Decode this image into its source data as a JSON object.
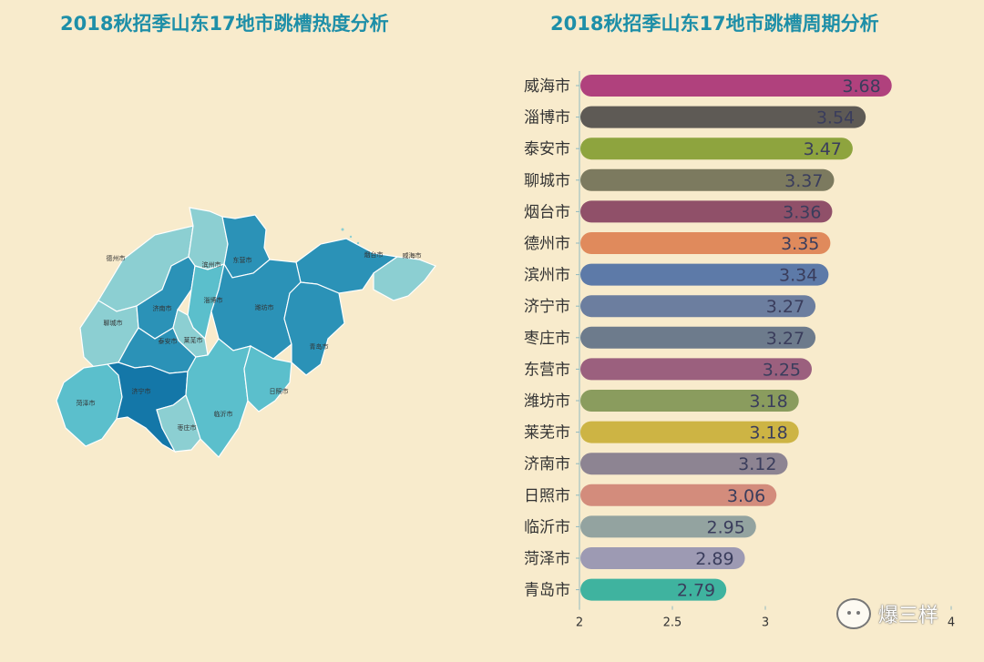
{
  "titles": {
    "left": "2018秋招季山东17地市跳槽热度分析",
    "right": "2018秋招季山东17地市跳槽周期分析"
  },
  "map": {
    "regions": [
      {
        "name": "德州市",
        "color": "#8ccfd2"
      },
      {
        "name": "滨州市",
        "color": "#8ccfd2"
      },
      {
        "name": "东营市",
        "color": "#2b92b7"
      },
      {
        "name": "烟台市",
        "color": "#2b92b7"
      },
      {
        "name": "威海市",
        "color": "#8ccfd2"
      },
      {
        "name": "聊城市",
        "color": "#8ccfd2"
      },
      {
        "name": "济南市",
        "color": "#2b92b7"
      },
      {
        "name": "淄博市",
        "color": "#5bbfcc"
      },
      {
        "name": "潍坊市",
        "color": "#2b92b7"
      },
      {
        "name": "青岛市",
        "color": "#2b92b7"
      },
      {
        "name": "泰安市",
        "color": "#2b92b7"
      },
      {
        "name": "莱芜市",
        "color": "#8ccfd2"
      },
      {
        "name": "菏泽市",
        "color": "#5bbfcc"
      },
      {
        "name": "济宁市",
        "color": "#1477a8"
      },
      {
        "name": "枣庄市",
        "color": "#8ccfd2"
      },
      {
        "name": "临沂市",
        "color": "#5bbfcc"
      },
      {
        "name": "日照市",
        "color": "#5bbfcc"
      }
    ]
  },
  "chart_data": {
    "type": "bar",
    "orientation": "horizontal",
    "categories": [
      "威海市",
      "淄博市",
      "泰安市",
      "聊城市",
      "烟台市",
      "德州市",
      "滨州市",
      "济宁市",
      "枣庄市",
      "东营市",
      "潍坊市",
      "莱芜市",
      "济南市",
      "日照市",
      "临沂市",
      "菏泽市",
      "青岛市"
    ],
    "values": [
      3.68,
      3.54,
      3.47,
      3.37,
      3.36,
      3.35,
      3.34,
      3.27,
      3.27,
      3.25,
      3.18,
      3.18,
      3.12,
      3.06,
      2.95,
      2.89,
      2.79
    ],
    "colors": [
      "#b0417d",
      "#5e5a55",
      "#8ea43e",
      "#7c7a5f",
      "#905069",
      "#e08a5c",
      "#5d7aa8",
      "#6c7e9f",
      "#6d7b8c",
      "#9b607e",
      "#8a9c5e",
      "#cdb444",
      "#8d8492",
      "#d38c7c",
      "#93a3a0",
      "#9d9ab3",
      "#3fb39f"
    ],
    "x_ticks": [
      "2",
      "2.5",
      "3",
      "4"
    ],
    "xlim": [
      2,
      4
    ]
  },
  "watermark": {
    "icon": "wechat-icon",
    "text": "爆三样"
  }
}
